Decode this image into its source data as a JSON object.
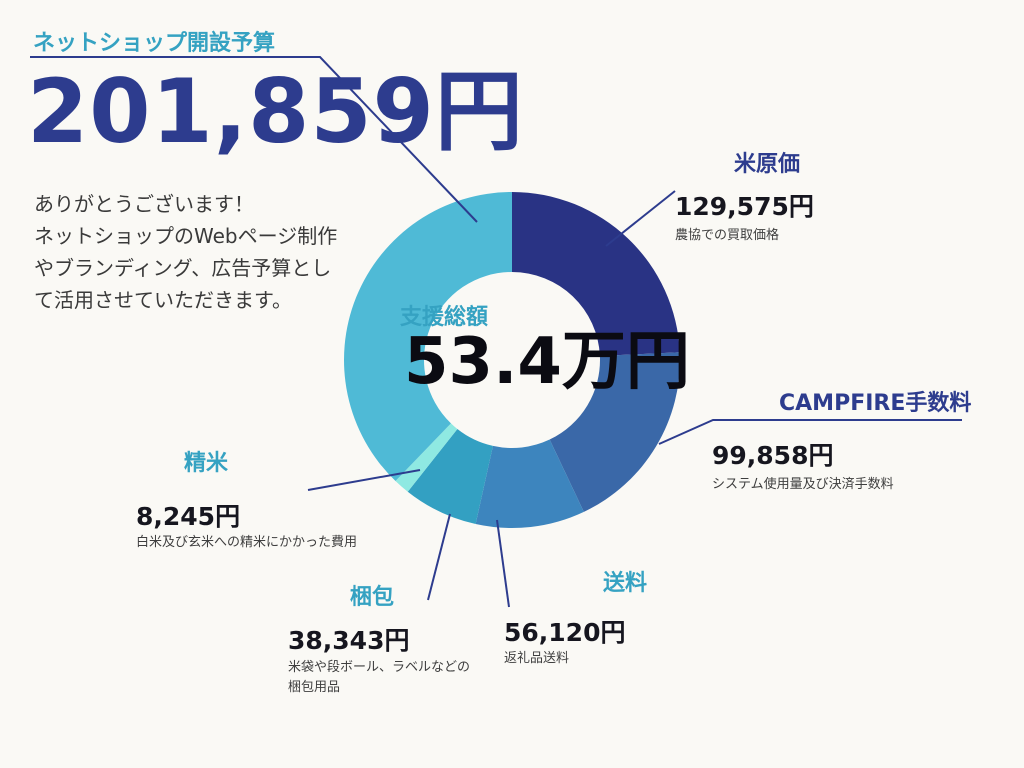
{
  "page": {
    "background": "#FAF9F5",
    "accent_teal": "#35A2C2",
    "accent_navy": "#2D3C8E"
  },
  "header": {
    "label": "ネットショップ開設予算",
    "amount": "201,859円",
    "message": "ありがとうございます！\nネットショップのWebページ制作\nやブランディング、広告予算とし\nて活用させていただきます。"
  },
  "chart_data": {
    "type": "pie",
    "style": "donut",
    "center_label": "支援総額",
    "center_value": "53.4万円",
    "total": 534000,
    "unit": "円",
    "start_angle_deg": -90,
    "direction": "clockwise",
    "legend_position": "around-chart-callouts",
    "segments": [
      {
        "label": "米原価",
        "value": 129575,
        "amount": "129,575円",
        "note": "農協での買取価格",
        "color": "#293384"
      },
      {
        "label": "CAMPFIRE手数料",
        "value": 99858,
        "amount": "99,858円",
        "note": "システム使用量及び決済手数料",
        "color": "#3A68A8"
      },
      {
        "label": "送料",
        "value": 56120,
        "amount": "56,120円",
        "note": "返礼品送料",
        "color": "#3D85BE"
      },
      {
        "label": "梱包",
        "value": 38343,
        "amount": "38,343円",
        "note": "米袋や段ボール、ラベルなどの\n梱包用品",
        "color": "#33A0C2"
      },
      {
        "label": "精米",
        "value": 8245,
        "amount": "8,245円",
        "note": "白米及び玄米への精米にかかった費用",
        "color": "#8FE9E2"
      },
      {
        "label": "ネットショップ開設予算",
        "value": 201859,
        "amount": "201,859円",
        "note": "",
        "color": "#4FBAD6"
      }
    ]
  }
}
